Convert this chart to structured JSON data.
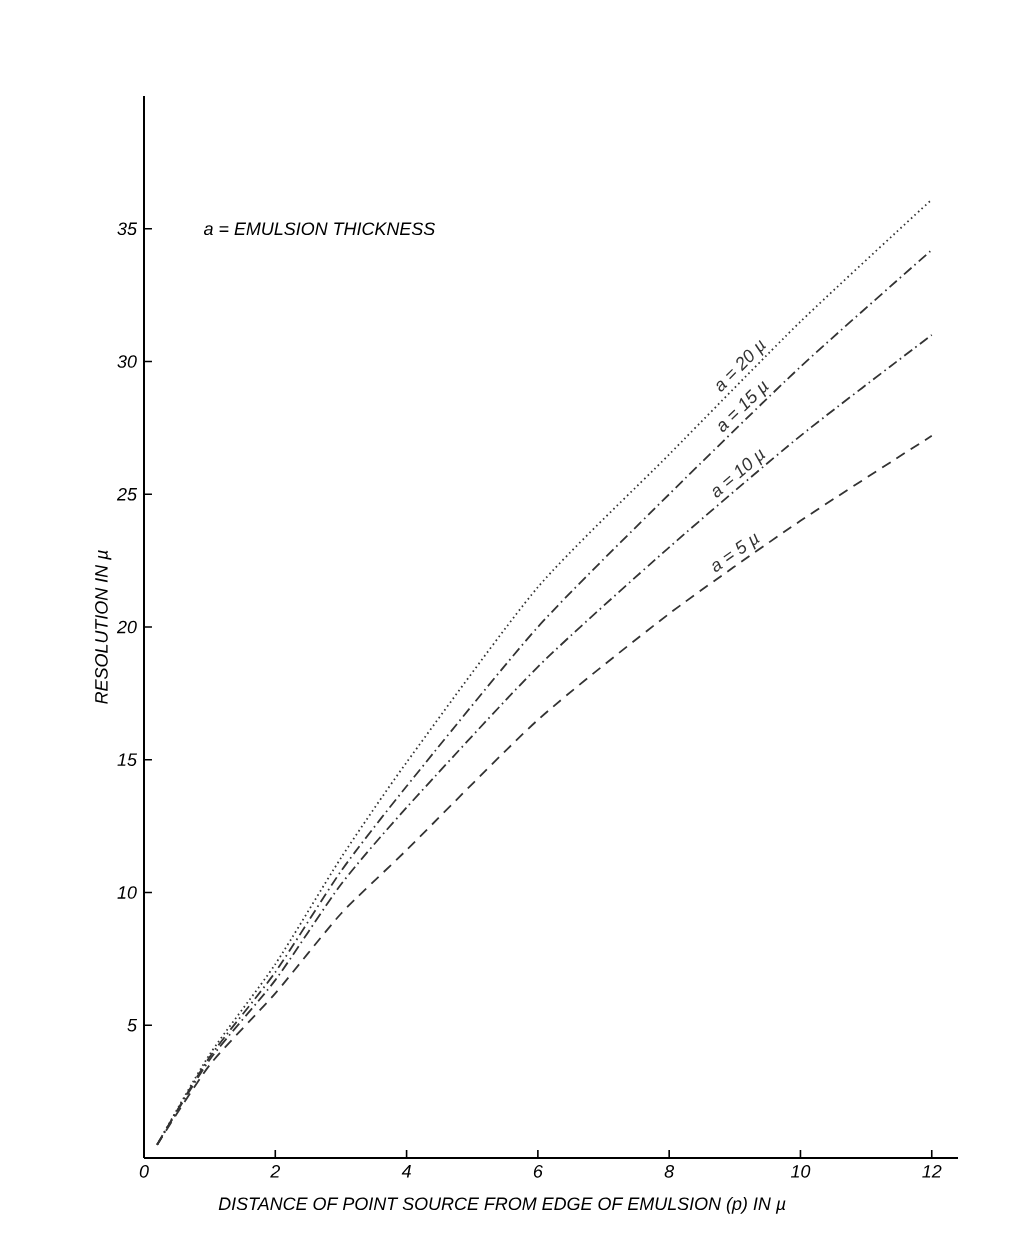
{
  "chart_data": {
    "type": "line",
    "title": "a = EMULSION THICKNESS",
    "xlabel": "DISTANCE OF POINT SOURCE FROM EDGE OF EMULSION (p) IN µ",
    "ylabel": "RESOLUTION IN µ",
    "x": [
      0.2,
      1,
      2,
      3,
      4,
      6,
      8,
      10,
      12
    ],
    "series": [
      {
        "name": "a = 20 µ",
        "color": "#333333",
        "line_style": "dotted",
        "values": [
          0.5,
          3.9,
          7.3,
          11.3,
          14.9,
          21.5,
          26.5,
          31.5,
          36.1
        ]
      },
      {
        "name": "a = 15 µ",
        "color": "#333333",
        "line_style": "dashdot",
        "values": [
          0.5,
          3.8,
          7.0,
          10.8,
          14.0,
          20.0,
          25.0,
          29.8,
          34.2
        ]
      },
      {
        "name": "a = 10 µ",
        "color": "#333333",
        "line_style": "dashdot",
        "values": [
          0.5,
          3.7,
          6.7,
          10.3,
          13.2,
          18.5,
          23.0,
          27.2,
          31.0
        ]
      },
      {
        "name": "a = 5 µ",
        "color": "#333333",
        "line_style": "dashed",
        "values": [
          0.5,
          3.5,
          6.2,
          9.2,
          11.6,
          16.5,
          20.5,
          24.0,
          27.2
        ]
      }
    ],
    "xlim": [
      0,
      12.4
    ],
    "ylim": [
      0,
      40
    ],
    "xticks": [
      0,
      2,
      4,
      6,
      8,
      10,
      12
    ],
    "yticks": [
      5,
      10,
      15,
      20,
      25,
      30,
      35
    ],
    "marker": "none"
  }
}
